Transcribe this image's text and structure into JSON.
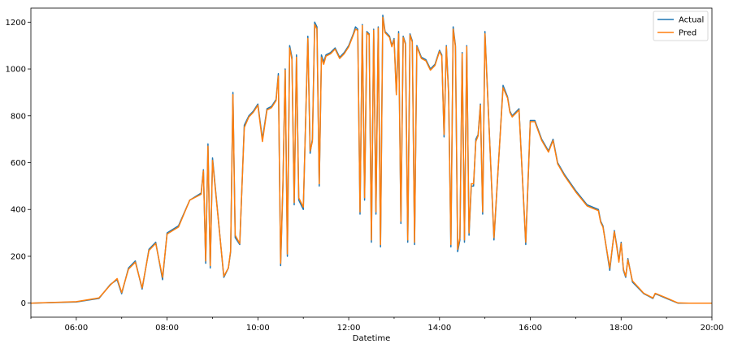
{
  "chart_data": {
    "type": "line",
    "xlabel": "Datetime",
    "ylabel": "",
    "x_ticks": [
      "06:00",
      "08:00",
      "10:00",
      "12:00",
      "14:00",
      "16:00",
      "18:00",
      "20:00"
    ],
    "y_ticks": [
      0,
      200,
      400,
      600,
      800,
      1000,
      1200
    ],
    "xlim_hours": [
      5.0,
      20.0
    ],
    "ylim": [
      -60,
      1260
    ],
    "legend_position": "top-right",
    "grid": false,
    "series": [
      {
        "name": "Actual",
        "color": "#1f77b4",
        "x": [
          5.0,
          6.0,
          6.5,
          6.75,
          6.9,
          7.0,
          7.15,
          7.3,
          7.45,
          7.6,
          7.75,
          7.9,
          8.0,
          8.25,
          8.5,
          8.75,
          8.8,
          8.85,
          8.9,
          8.95,
          9.0,
          9.25,
          9.35,
          9.4,
          9.45,
          9.5,
          9.6,
          9.7,
          9.8,
          9.9,
          10.0,
          10.1,
          10.2,
          10.3,
          10.4,
          10.45,
          10.5,
          10.55,
          10.6,
          10.65,
          10.7,
          10.75,
          10.8,
          10.85,
          10.9,
          11.0,
          11.1,
          11.15,
          11.2,
          11.25,
          11.3,
          11.35,
          11.4,
          11.45,
          11.5,
          11.6,
          11.7,
          11.8,
          11.9,
          12.0,
          12.1,
          12.15,
          12.2,
          12.25,
          12.3,
          12.35,
          12.4,
          12.45,
          12.5,
          12.55,
          12.6,
          12.65,
          12.7,
          12.75,
          12.8,
          12.85,
          12.9,
          12.95,
          13.0,
          13.05,
          13.1,
          13.15,
          13.2,
          13.25,
          13.3,
          13.35,
          13.4,
          13.45,
          13.5,
          13.6,
          13.7,
          13.8,
          13.9,
          14.0,
          14.05,
          14.1,
          14.15,
          14.2,
          14.25,
          14.3,
          14.35,
          14.4,
          14.45,
          14.5,
          14.55,
          14.6,
          14.65,
          14.7,
          14.75,
          14.8,
          14.85,
          14.9,
          14.95,
          15.0,
          15.2,
          15.4,
          15.5,
          15.55,
          15.6,
          15.75,
          15.9,
          16.0,
          16.1,
          16.25,
          16.4,
          16.5,
          16.6,
          16.75,
          17.0,
          17.25,
          17.5,
          17.55,
          17.6,
          17.75,
          17.85,
          17.9,
          17.95,
          18.0,
          18.05,
          18.1,
          18.15,
          18.25,
          18.5,
          18.6,
          18.7,
          18.75,
          19.0,
          19.25,
          19.5,
          20.0
        ],
        "values": [
          0,
          5,
          20,
          80,
          100,
          40,
          150,
          180,
          60,
          230,
          260,
          100,
          300,
          330,
          440,
          470,
          570,
          170,
          680,
          150,
          620,
          110,
          150,
          220,
          900,
          280,
          250,
          760,
          800,
          820,
          850,
          700,
          830,
          840,
          870,
          980,
          160,
          500,
          1000,
          200,
          1100,
          1050,
          420,
          1060,
          440,
          400,
          1140,
          640,
          700,
          1200,
          1180,
          500,
          1060,
          1030,
          1060,
          1070,
          1090,
          1050,
          1070,
          1100,
          1150,
          1180,
          1170,
          380,
          1190,
          440,
          1160,
          1150,
          260,
          1170,
          380,
          1180,
          240,
          1230,
          1160,
          1150,
          1140,
          1100,
          1130,
          900,
          1160,
          340,
          1140,
          1110,
          260,
          1150,
          1120,
          250,
          1100,
          1050,
          1040,
          1000,
          1020,
          1080,
          1060,
          710,
          1100,
          900,
          240,
          1180,
          1100,
          220,
          270,
          1070,
          260,
          1100,
          290,
          500,
          500,
          700,
          720,
          850,
          380,
          1160,
          270,
          930,
          880,
          820,
          800,
          830,
          250,
          780,
          780,
          700,
          650,
          700,
          600,
          550,
          480,
          420,
          400,
          350,
          330,
          140,
          310,
          250,
          180,
          260,
          140,
          110,
          190,
          90,
          40,
          30,
          20,
          40,
          20,
          0,
          0,
          0
        ]
      },
      {
        "name": "Pred",
        "color": "#ff7f0e",
        "x": [
          5.0,
          6.0,
          6.5,
          6.75,
          6.9,
          7.0,
          7.15,
          7.3,
          7.45,
          7.6,
          7.75,
          7.9,
          8.0,
          8.25,
          8.5,
          8.75,
          8.8,
          8.85,
          8.9,
          8.95,
          9.0,
          9.25,
          9.35,
          9.4,
          9.45,
          9.5,
          9.6,
          9.7,
          9.8,
          9.9,
          10.0,
          10.1,
          10.2,
          10.3,
          10.4,
          10.45,
          10.5,
          10.55,
          10.6,
          10.65,
          10.7,
          10.75,
          10.8,
          10.85,
          10.9,
          11.0,
          11.1,
          11.15,
          11.2,
          11.25,
          11.3,
          11.35,
          11.4,
          11.45,
          11.5,
          11.6,
          11.7,
          11.8,
          11.9,
          12.0,
          12.1,
          12.15,
          12.2,
          12.25,
          12.3,
          12.35,
          12.4,
          12.45,
          12.5,
          12.55,
          12.6,
          12.65,
          12.7,
          12.75,
          12.8,
          12.85,
          12.9,
          12.95,
          13.0,
          13.05,
          13.1,
          13.15,
          13.2,
          13.25,
          13.3,
          13.35,
          13.4,
          13.45,
          13.5,
          13.6,
          13.7,
          13.8,
          13.9,
          14.0,
          14.05,
          14.1,
          14.15,
          14.2,
          14.25,
          14.3,
          14.35,
          14.4,
          14.45,
          14.5,
          14.55,
          14.6,
          14.65,
          14.7,
          14.75,
          14.8,
          14.85,
          14.9,
          14.95,
          15.0,
          15.2,
          15.4,
          15.5,
          15.55,
          15.6,
          15.75,
          15.9,
          16.0,
          16.1,
          16.25,
          16.4,
          16.5,
          16.6,
          16.75,
          17.0,
          17.25,
          17.5,
          17.55,
          17.6,
          17.75,
          17.85,
          17.9,
          17.95,
          18.0,
          18.05,
          18.1,
          18.15,
          18.25,
          18.5,
          18.6,
          18.7,
          18.75,
          19.0,
          19.25,
          19.5,
          20.0
        ],
        "values": [
          0,
          6,
          22,
          78,
          105,
          45,
          145,
          175,
          65,
          225,
          255,
          110,
          295,
          325,
          440,
          465,
          565,
          180,
          670,
          160,
          610,
          115,
          150,
          225,
          890,
          290,
          255,
          750,
          795,
          815,
          845,
          690,
          825,
          835,
          865,
          970,
          170,
          510,
          995,
          210,
          1090,
          1040,
          430,
          1050,
          450,
          410,
          1130,
          650,
          690,
          1190,
          1170,
          510,
          1050,
          1020,
          1055,
          1065,
          1085,
          1045,
          1065,
          1095,
          1145,
          1170,
          1165,
          390,
          1185,
          450,
          1155,
          1145,
          270,
          1165,
          390,
          1175,
          250,
          1220,
          1155,
          1145,
          1135,
          1095,
          1125,
          890,
          1150,
          350,
          1135,
          1105,
          270,
          1145,
          1115,
          260,
          1095,
          1045,
          1035,
          995,
          1015,
          1075,
          1055,
          720,
          1095,
          890,
          250,
          1170,
          1095,
          230,
          280,
          1065,
          270,
          1095,
          300,
          510,
          510,
          690,
          715,
          845,
          390,
          1150,
          280,
          920,
          875,
          815,
          795,
          825,
          260,
          775,
          775,
          695,
          645,
          695,
          595,
          545,
          475,
          415,
          395,
          345,
          325,
          150,
          305,
          245,
          175,
          255,
          145,
          115,
          185,
          95,
          42,
          32,
          22,
          42,
          22,
          1,
          0,
          0
        ]
      }
    ]
  }
}
